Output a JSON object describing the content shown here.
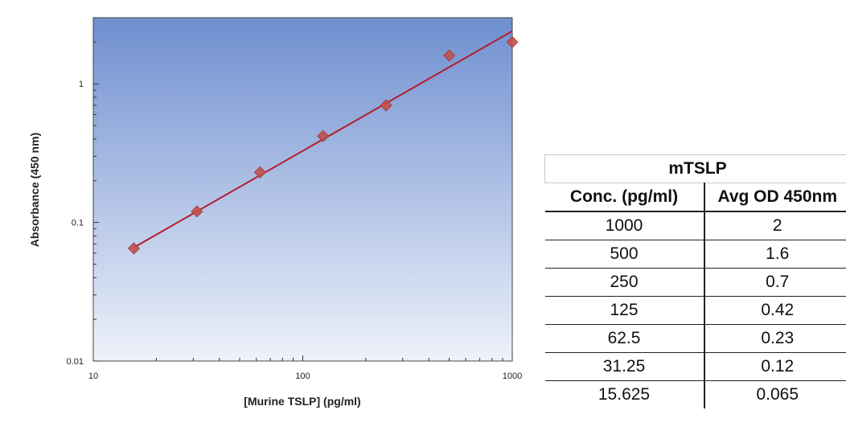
{
  "chart_data": {
    "type": "scatter",
    "xlabel": "[Murine TSLP] (pg/ml)",
    "ylabel": "Absorbance (450 nm)",
    "xscale": "log",
    "yscale": "log",
    "xlim": [
      10,
      1000
    ],
    "ylim": [
      0.01,
      3
    ],
    "x_ticks": [
      10,
      100,
      1000
    ],
    "x_tick_labels": [
      "10",
      "100",
      "1000"
    ],
    "y_ticks": [
      0.01,
      0.1,
      1
    ],
    "y_tick_labels": [
      "0.01",
      "0.1",
      "1"
    ],
    "series": [
      {
        "marker": "diamond",
        "x": [
          15.625,
          31.25,
          62.5,
          125,
          250,
          500,
          1000
        ],
        "y": [
          0.065,
          0.12,
          0.23,
          0.42,
          0.7,
          1.6,
          2
        ]
      }
    ],
    "fit_line": {
      "x": [
        15.625,
        1000
      ],
      "y": [
        0.066,
        2.4
      ]
    },
    "colors": {
      "plot_bg_top": "#6f8fd0",
      "plot_bg_bottom": "#eef2fa",
      "marker": "#c0504d",
      "line": "#b01e2e"
    }
  },
  "table": {
    "title": "mTSLP",
    "headers": [
      "Conc. (pg/ml)",
      "Avg OD 450nm"
    ],
    "rows": [
      [
        "1000",
        "2"
      ],
      [
        "500",
        "1.6"
      ],
      [
        "250",
        "0.7"
      ],
      [
        "125",
        "0.42"
      ],
      [
        "62.5",
        "0.23"
      ],
      [
        "31.25",
        "0.12"
      ],
      [
        "15.625",
        "0.065"
      ]
    ]
  }
}
